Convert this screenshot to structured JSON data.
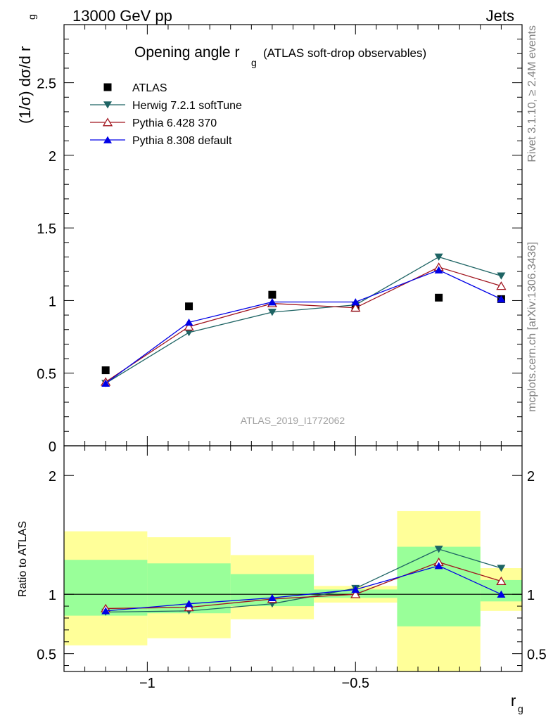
{
  "header": {
    "energy": "13000 GeV pp",
    "process": "Jets"
  },
  "side_labels": {
    "rivet": "Rivet 3.1.10, ≥ 2.4M events",
    "mcplots": "mcplots.cern.ch [arXiv:1306.3436]"
  },
  "chart_data": [
    {
      "type": "line",
      "panel": "main",
      "title": "Opening angle r",
      "title_sub": "g",
      "title_suffix": "(ATLAS soft-drop observables)",
      "ylabel": "(1/σ) dσ/d r",
      "ylabel_sub": "g",
      "analysis": "ATLAS_2019_I1772062",
      "xlim": [
        -1.2,
        -0.1
      ],
      "ylim": [
        0,
        2.9
      ],
      "yticks": [
        0,
        0.5,
        1,
        1.5,
        2,
        2.5
      ],
      "ytick_labels": [
        "0",
        "0.5",
        "1",
        "1.5",
        "2",
        "2.5"
      ],
      "x_edges": [
        -1.2,
        -1.0,
        -0.8,
        -0.6,
        -0.4,
        -0.2,
        -0.1
      ],
      "x": [
        -1.1,
        -0.9,
        -0.7,
        -0.5,
        -0.3,
        -0.15
      ],
      "grid": false,
      "legend_position": "top-left",
      "series": [
        {
          "name": "ATLAS",
          "marker": "square",
          "color": "#000000",
          "values": [
            0.52,
            0.96,
            1.04,
            0.95,
            1.02,
            1.01
          ]
        },
        {
          "name": "Herwig 7.2.1 softTune",
          "marker": "triangle-down",
          "color": "#1e6464",
          "values": [
            0.43,
            0.78,
            0.92,
            0.97,
            1.3,
            1.17
          ]
        },
        {
          "name": "Pythia 6.428 370",
          "marker": "triangle-up-open",
          "color": "#a0141e",
          "values": [
            0.44,
            0.82,
            0.98,
            0.95,
            1.23,
            1.1
          ]
        },
        {
          "name": "Pythia 8.308 default",
          "marker": "triangle-up",
          "color": "#0000e6",
          "values": [
            0.43,
            0.85,
            0.99,
            0.99,
            1.21,
            1.01
          ]
        }
      ]
    },
    {
      "type": "line",
      "panel": "ratio",
      "ylabel": "Ratio to ATLAS",
      "xlabel": "r",
      "xlabel_sub": "g",
      "xlim": [
        -1.2,
        -0.1
      ],
      "ylim": [
        0.35,
        2.25
      ],
      "yticks": [
        0.5,
        1,
        2
      ],
      "ytick_labels": [
        "0.5",
        "1",
        "2"
      ],
      "xticks": [
        -1,
        -0.5
      ],
      "xtick_labels": [
        "−1",
        "−0.5"
      ],
      "x_edges": [
        -1.2,
        -1.0,
        -0.8,
        -0.6,
        -0.4,
        -0.2,
        -0.1
      ],
      "band_yellow": [
        [
          0.57,
          1.53
        ],
        [
          0.63,
          1.48
        ],
        [
          0.79,
          1.33
        ],
        [
          0.93,
          1.07
        ],
        [
          0.35,
          1.7
        ],
        [
          0.86,
          1.22
        ]
      ],
      "band_green": [
        [
          0.82,
          1.29
        ],
        [
          0.84,
          1.26
        ],
        [
          0.9,
          1.17
        ],
        [
          0.97,
          1.04
        ],
        [
          0.73,
          1.4
        ],
        [
          0.94,
          1.12
        ]
      ],
      "x": [
        -1.1,
        -0.9,
        -0.7,
        -0.5,
        -0.3,
        -0.15
      ],
      "series": [
        {
          "name": "Herwig 7.2.1 softTune",
          "marker": "triangle-down",
          "color": "#1e6464",
          "values": [
            0.85,
            0.86,
            0.92,
            1.05,
            1.38,
            1.22
          ]
        },
        {
          "name": "Pythia 6.428 370",
          "marker": "triangle-up-open",
          "color": "#a0141e",
          "values": [
            0.88,
            0.89,
            0.96,
            1.0,
            1.27,
            1.11
          ]
        },
        {
          "name": "Pythia 8.308 default",
          "marker": "triangle-up",
          "color": "#0000e6",
          "values": [
            0.86,
            0.92,
            0.97,
            1.04,
            1.24,
            1.0
          ]
        }
      ]
    }
  ]
}
